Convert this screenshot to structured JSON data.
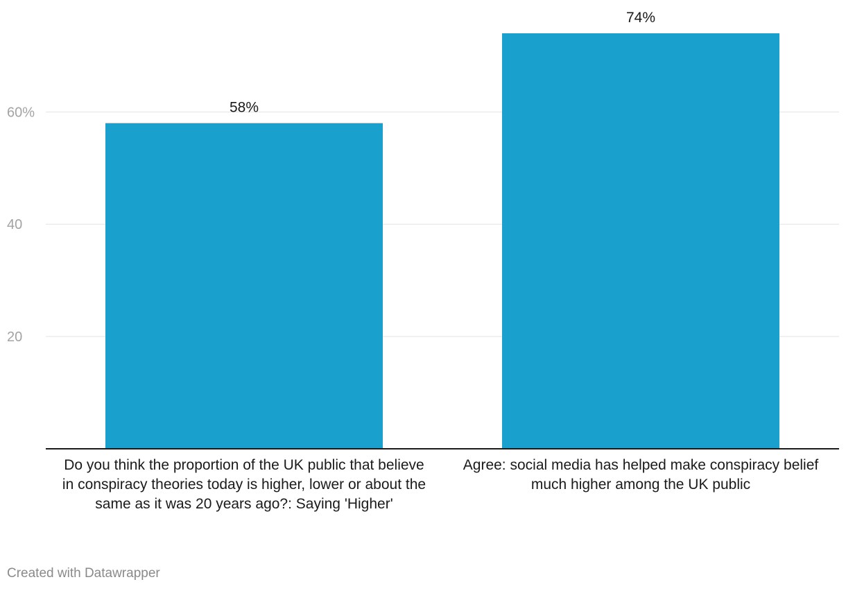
{
  "chart_data": {
    "type": "bar",
    "title": "",
    "xlabel": "",
    "ylabel": "",
    "categories": [
      "Do you think the proportion of the UK public that believe in conspiracy theories today is higher, lower or about the same as it was 20 years ago?: Saying 'Higher'",
      "Agree: social media has helped make conspiracy belief much higher among the UK public"
    ],
    "values": [
      58,
      74
    ],
    "value_labels": [
      "58%",
      "74%"
    ],
    "ylim": [
      0,
      74
    ],
    "yticks": [
      {
        "value": 20,
        "label": "20"
      },
      {
        "value": 40,
        "label": "40"
      },
      {
        "value": 60,
        "label": "60%"
      }
    ],
    "grid": true,
    "bar_color": "#1aa0cc"
  },
  "footer": {
    "credit": "Created with Datawrapper"
  },
  "colors": {
    "grid": "#e3e3e3",
    "axis": "#1a1a1a",
    "tick_text": "#a3a3a3",
    "footer_text": "#8a8a8a"
  }
}
